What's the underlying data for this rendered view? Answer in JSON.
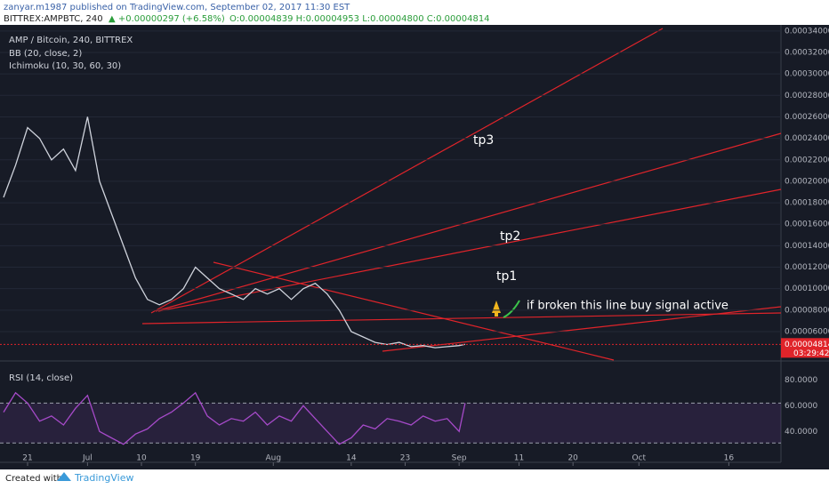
{
  "header": {
    "publisher": "zanyar.m1987 published on TradingView.com, September 02, 2017 11:30 EST",
    "symbol": "BITTREX:AMPBTC, 240",
    "change": "▲ +0.00000297 (+6.58%)",
    "ohlc": "O:0.00004839 H:0.00004953 L:0.00004800 C:0.00004814"
  },
  "footer": {
    "created": "Created with",
    "brand": "TradingView"
  },
  "chart_data": [
    {
      "type": "line",
      "title": "AMP / Bitcoin, 240, BITTREX",
      "indicators": [
        "BB (20, close, 2)",
        "Ichimoku (10, 30, 60, 30)"
      ],
      "annotations": [
        "tp3",
        "tp2",
        "tp1",
        "if broken this line buy signal active"
      ],
      "x": [
        -4,
        -2,
        0,
        2,
        4,
        6,
        8,
        10,
        12,
        14,
        16,
        18,
        20,
        22,
        24,
        26,
        28,
        30,
        32,
        34,
        36,
        38,
        40,
        42,
        44,
        46,
        48,
        50,
        52,
        54,
        56,
        58,
        60,
        62,
        64,
        66,
        68,
        70,
        72,
        73
      ],
      "values": [
        0.000185,
        0.000215,
        0.00025,
        0.00024,
        0.00022,
        0.00023,
        0.00021,
        0.00026,
        0.0002,
        0.00017,
        0.00014,
        0.00011,
        9e-05,
        8.5e-05,
        9e-05,
        0.0001,
        0.00012,
        0.00011,
        0.0001,
        9.5e-05,
        9e-05,
        0.0001,
        9.5e-05,
        0.0001,
        9e-05,
        0.0001,
        0.000105,
        9.5e-05,
        8e-05,
        6e-05,
        5.5e-05,
        5e-05,
        4.8e-05,
        5e-05,
        4.6e-05,
        4.7e-05,
        4.5e-05,
        4.6e-05,
        4.7e-05,
        4.814e-05
      ],
      "color": "#cfd3dc",
      "xlim": [
        -4.6,
        125.7
      ],
      "xticks": [
        {
          "value": 0,
          "label": "21"
        },
        {
          "value": 10,
          "label": "Jul"
        },
        {
          "value": 19,
          "label": "10"
        },
        {
          "value": 28,
          "label": "19"
        },
        {
          "value": 41,
          "label": "Aug"
        },
        {
          "value": 54,
          "label": "14"
        },
        {
          "value": 63,
          "label": "23"
        },
        {
          "value": 72,
          "label": "Sep"
        },
        {
          "value": 82,
          "label": "11"
        },
        {
          "value": 91,
          "label": "20"
        },
        {
          "value": 102,
          "label": "Oct"
        },
        {
          "value": 117,
          "label": "16"
        }
      ],
      "ylim": [
        3.35e-05,
        0.000344
      ],
      "yticks": [
        {
          "value": 6e-05,
          "label": "0.00006000"
        },
        {
          "value": 8e-05,
          "label": "0.00008000"
        },
        {
          "value": 0.0001,
          "label": "0.00010000"
        },
        {
          "value": 0.00012,
          "label": "0.00012000"
        },
        {
          "value": 0.00014,
          "label": "0.00014000"
        },
        {
          "value": 0.00016,
          "label": "0.00016000"
        },
        {
          "value": 0.00018,
          "label": "0.00018000"
        },
        {
          "value": 0.0002,
          "label": "0.00020000"
        },
        {
          "value": 0.00022,
          "label": "0.00022000"
        },
        {
          "value": 0.00024,
          "label": "0.00024000"
        },
        {
          "value": 0.00026,
          "label": "0.00026000"
        },
        {
          "value": 0.00028,
          "label": "0.00028000"
        },
        {
          "value": 0.0003,
          "label": "0.00030000"
        },
        {
          "value": 0.00032,
          "label": "0.00032000"
        },
        {
          "value": 0.00034,
          "label": "0.00034000"
        }
      ],
      "last_price": {
        "value": 4.814e-05,
        "label": "0.00004814"
      },
      "countdown": "03:29:42",
      "grid": true
    },
    {
      "type": "line",
      "title": "RSI (14, close)",
      "x": [
        -4,
        -2,
        0,
        2,
        4,
        6,
        8,
        10,
        12,
        14,
        16,
        18,
        20,
        22,
        24,
        26,
        28,
        30,
        32,
        34,
        36,
        38,
        40,
        42,
        44,
        46,
        48,
        50,
        52,
        54,
        56,
        58,
        60,
        62,
        64,
        66,
        68,
        70,
        72,
        73
      ],
      "values": [
        55,
        70,
        62,
        48,
        52,
        45,
        58,
        68,
        40,
        35,
        30,
        38,
        42,
        50,
        55,
        62,
        70,
        52,
        45,
        50,
        48,
        55,
        45,
        52,
        48,
        60,
        50,
        40,
        30,
        35,
        45,
        42,
        50,
        48,
        45,
        52,
        48,
        50,
        40,
        62
      ],
      "color": "#a64ac9",
      "ylim": [
        16,
        92
      ],
      "yticks": [
        {
          "value": 40,
          "label": "40.0000"
        },
        {
          "value": 60,
          "label": "60.0000"
        },
        {
          "value": 80,
          "label": "80.0000"
        }
      ],
      "bands": [
        62,
        31
      ]
    }
  ]
}
